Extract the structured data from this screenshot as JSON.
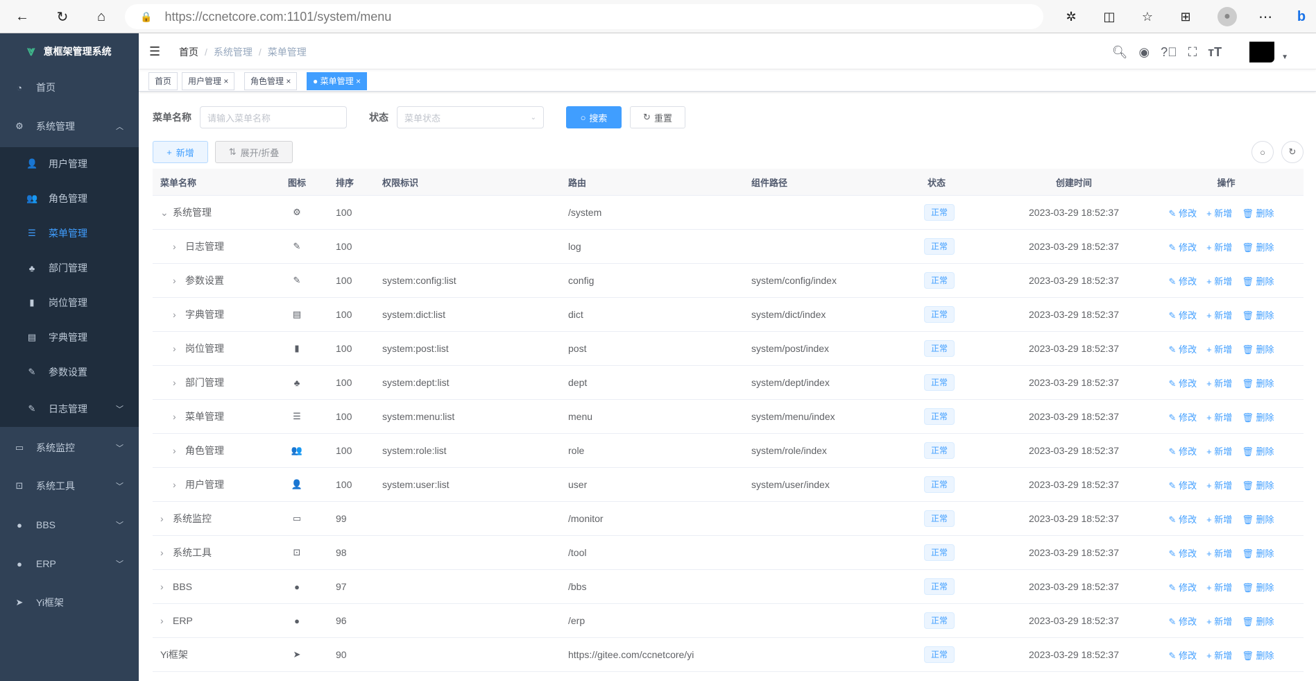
{
  "browser": {
    "url_host": "https://ccnetcore.com",
    "url_path": ":1101/system/menu"
  },
  "app": {
    "title": "意框架管理系统"
  },
  "sidebar": {
    "items": [
      {
        "label": "首页",
        "icon": "dashboard-icon"
      },
      {
        "label": "系统管理",
        "icon": "gear-icon",
        "expanded": true
      },
      {
        "label": "用户管理",
        "icon": "user-icon"
      },
      {
        "label": "角色管理",
        "icon": "peoples-icon"
      },
      {
        "label": "菜单管理",
        "icon": "tree-table-icon",
        "active": true
      },
      {
        "label": "部门管理",
        "icon": "tree-icon"
      },
      {
        "label": "岗位管理",
        "icon": "post-icon"
      },
      {
        "label": "字典管理",
        "icon": "dict-icon"
      },
      {
        "label": "参数设置",
        "icon": "edit-icon"
      },
      {
        "label": "日志管理",
        "icon": "log-icon"
      },
      {
        "label": "系统监控",
        "icon": "monitor-icon"
      },
      {
        "label": "系统工具",
        "icon": "tool-icon"
      },
      {
        "label": "BBS",
        "icon": "globe-icon"
      },
      {
        "label": "ERP",
        "icon": "globe-icon"
      },
      {
        "label": "Yi框架",
        "icon": "send-icon"
      }
    ]
  },
  "breadcrumb": [
    "首页",
    "系统管理",
    "菜单管理"
  ],
  "tags": [
    {
      "label": "首页"
    },
    {
      "label": "用户管理"
    },
    {
      "label": "角色管理"
    },
    {
      "label": "菜单管理",
      "active": true
    }
  ],
  "search": {
    "name_label": "菜单名称",
    "name_placeholder": "请输入菜单名称",
    "status_label": "状态",
    "status_placeholder": "菜单状态",
    "search_btn": "搜索",
    "reset_btn": "重置"
  },
  "toolbar": {
    "add_btn": "新增",
    "expand_btn": "展开/折叠"
  },
  "table": {
    "headers": [
      "菜单名称",
      "图标",
      "排序",
      "权限标识",
      "路由",
      "组件路径",
      "状态",
      "创建时间",
      "操作"
    ],
    "actions": [
      "修改",
      "新增",
      "删除"
    ],
    "rows": [
      {
        "name": "系统管理",
        "level": 0,
        "toggle": "v",
        "icon": "⚙",
        "sort": "100",
        "perms": "",
        "route": "/system",
        "component": "",
        "status": "正常",
        "created": "2023-03-29 18:52:37"
      },
      {
        "name": "日志管理",
        "level": 1,
        "toggle": ">",
        "icon": "✎",
        "sort": "100",
        "perms": "",
        "route": "log",
        "component": "",
        "status": "正常",
        "created": "2023-03-29 18:52:37"
      },
      {
        "name": "参数设置",
        "level": 1,
        "toggle": ">",
        "icon": "✎",
        "sort": "100",
        "perms": "system:config:list",
        "route": "config",
        "component": "system/config/index",
        "status": "正常",
        "created": "2023-03-29 18:52:37"
      },
      {
        "name": "字典管理",
        "level": 1,
        "toggle": ">",
        "icon": "▤",
        "sort": "100",
        "perms": "system:dict:list",
        "route": "dict",
        "component": "system/dict/index",
        "status": "正常",
        "created": "2023-03-29 18:52:37"
      },
      {
        "name": "岗位管理",
        "level": 1,
        "toggle": ">",
        "icon": "▮",
        "sort": "100",
        "perms": "system:post:list",
        "route": "post",
        "component": "system/post/index",
        "status": "正常",
        "created": "2023-03-29 18:52:37"
      },
      {
        "name": "部门管理",
        "level": 1,
        "toggle": ">",
        "icon": "♣",
        "sort": "100",
        "perms": "system:dept:list",
        "route": "dept",
        "component": "system/dept/index",
        "status": "正常",
        "created": "2023-03-29 18:52:37"
      },
      {
        "name": "菜单管理",
        "level": 1,
        "toggle": ">",
        "icon": "☰",
        "sort": "100",
        "perms": "system:menu:list",
        "route": "menu",
        "component": "system/menu/index",
        "status": "正常",
        "created": "2023-03-29 18:52:37"
      },
      {
        "name": "角色管理",
        "level": 1,
        "toggle": ">",
        "icon": "👥",
        "sort": "100",
        "perms": "system:role:list",
        "route": "role",
        "component": "system/role/index",
        "status": "正常",
        "created": "2023-03-29 18:52:37"
      },
      {
        "name": "用户管理",
        "level": 1,
        "toggle": ">",
        "icon": "👤",
        "sort": "100",
        "perms": "system:user:list",
        "route": "user",
        "component": "system/user/index",
        "status": "正常",
        "created": "2023-03-29 18:52:37"
      },
      {
        "name": "系统监控",
        "level": 0,
        "toggle": ">",
        "icon": "▭",
        "sort": "99",
        "perms": "",
        "route": "/monitor",
        "component": "",
        "status": "正常",
        "created": "2023-03-29 18:52:37"
      },
      {
        "name": "系统工具",
        "level": 0,
        "toggle": ">",
        "icon": "⊡",
        "sort": "98",
        "perms": "",
        "route": "/tool",
        "component": "",
        "status": "正常",
        "created": "2023-03-29 18:52:37"
      },
      {
        "name": "BBS",
        "level": 0,
        "toggle": ">",
        "icon": "●",
        "sort": "97",
        "perms": "",
        "route": "/bbs",
        "component": "",
        "status": "正常",
        "created": "2023-03-29 18:52:37"
      },
      {
        "name": "ERP",
        "level": 0,
        "toggle": ">",
        "icon": "●",
        "sort": "96",
        "perms": "",
        "route": "/erp",
        "component": "",
        "status": "正常",
        "created": "2023-03-29 18:52:37"
      },
      {
        "name": "Yi框架",
        "level": 0,
        "toggle": "",
        "icon": "➤",
        "sort": "90",
        "perms": "",
        "route": "https://gitee.com/ccnetcore/yi",
        "component": "",
        "status": "正常",
        "created": "2023-03-29 18:52:37"
      }
    ]
  },
  "colors": {
    "sidebar": "#304156",
    "submenu": "#1f2d3d",
    "primary": "#409eff"
  }
}
